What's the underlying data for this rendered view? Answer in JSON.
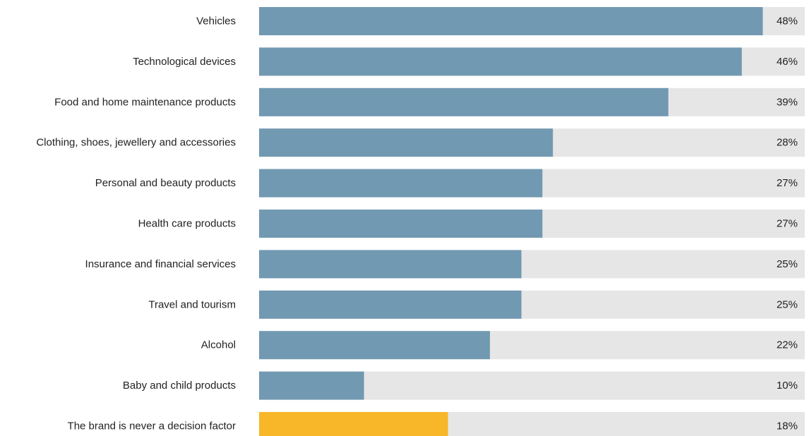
{
  "chart_data": {
    "type": "bar",
    "orientation": "horizontal",
    "categories": [
      "Vehicles",
      "Technological devices",
      "Food and home maintenance products",
      "Clothing, shoes, jewellery and accessories",
      "Personal and beauty products",
      "Health care products",
      "Insurance and financial services",
      "Travel and tourism",
      "Alcohol",
      "Baby and child products",
      "The brand is never a decision factor"
    ],
    "values": [
      48,
      46,
      39,
      28,
      27,
      27,
      25,
      25,
      22,
      10,
      18
    ],
    "value_labels": [
      "48%",
      "46%",
      "39%",
      "28%",
      "27%",
      "27%",
      "25%",
      "25%",
      "22%",
      "10%",
      "18%"
    ],
    "xlim": [
      0,
      52
    ],
    "grid": false,
    "legend": "none",
    "colors": {
      "bar": "#7299b2",
      "highlight_bar": "#f7b728",
      "track": "#e6e6e7",
      "text": "#222222"
    },
    "highlight_index": 10
  }
}
